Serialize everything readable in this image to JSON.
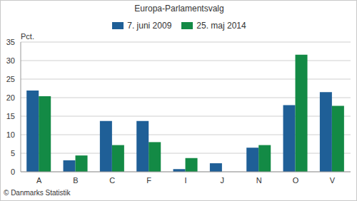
{
  "chart_data": {
    "type": "bar",
    "title": "Europa-Parlamentsvalg",
    "y_label": "Pct.",
    "annotations": [
      "© Danmarks Statistik"
    ],
    "categories": [
      "A",
      "B",
      "C",
      "F",
      "I",
      "J",
      "N",
      "O",
      "V"
    ],
    "series": [
      {
        "name": "7. juni 2009",
        "color": "#1f5f97",
        "values": [
          21.9,
          3.1,
          13.7,
          13.7,
          0.7,
          2.3,
          6.5,
          18.0,
          21.5
        ]
      },
      {
        "name": "25. maj 2014",
        "color": "#138a45",
        "values": [
          20.4,
          4.4,
          7.2,
          8.0,
          3.7,
          null,
          7.2,
          31.6,
          17.8
        ]
      }
    ],
    "ylim": [
      0,
      35
    ],
    "yticks": [
      0,
      5,
      10,
      15,
      20,
      25,
      30,
      35
    ],
    "grid": true,
    "legend": "top"
  }
}
